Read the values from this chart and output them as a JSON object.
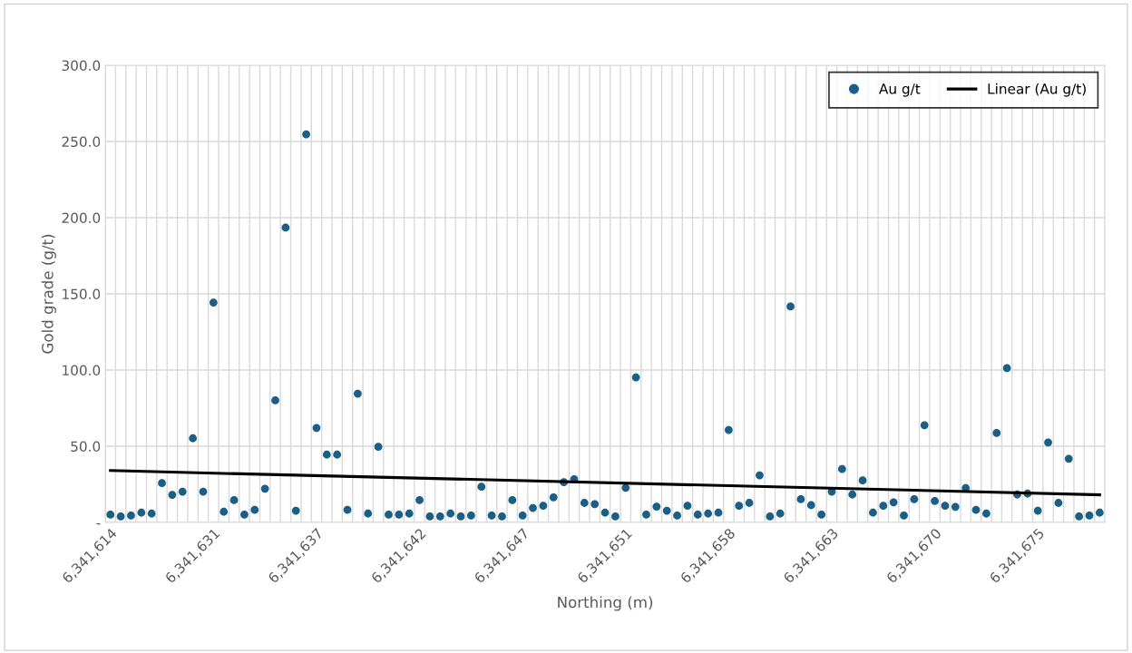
{
  "chart_data": {
    "type": "scatter",
    "xlabel": "Northing (m)",
    "ylabel": "Gold grade (g/t)",
    "categories": [
      "6,341,614",
      null,
      null,
      null,
      null,
      null,
      null,
      null,
      null,
      null,
      "6,341,631",
      null,
      null,
      null,
      null,
      null,
      null,
      null,
      null,
      null,
      "6,341,637",
      null,
      null,
      null,
      null,
      null,
      null,
      null,
      null,
      null,
      "6,341,642",
      null,
      null,
      null,
      null,
      null,
      null,
      null,
      null,
      null,
      "6,341,647",
      null,
      null,
      null,
      null,
      null,
      null,
      null,
      null,
      null,
      "6,341,651",
      null,
      null,
      null,
      null,
      null,
      null,
      null,
      null,
      null,
      "6,341,658",
      null,
      null,
      null,
      null,
      null,
      null,
      null,
      null,
      null,
      "6,341,663",
      null,
      null,
      null,
      null,
      null,
      null,
      null,
      null,
      null,
      "6,341,670",
      null,
      null,
      null,
      null,
      null,
      null,
      null,
      null,
      null,
      "6,341,675",
      null,
      null,
      null,
      null,
      null,
      null
    ],
    "series": [
      {
        "name": "Au g/t",
        "color": "#1b5e86",
        "values": [
          5.1,
          3.9,
          4.5,
          6.4,
          5.8,
          25.8,
          18.1,
          20.2,
          55.2,
          20.2,
          144.3,
          7.0,
          14.6,
          5.1,
          8.2,
          22.1,
          80.1,
          193.5,
          7.7,
          254.7,
          62.0,
          44.5,
          44.5,
          8.2,
          84.5,
          5.8,
          49.6,
          5.1,
          5.1,
          5.8,
          14.6,
          3.9,
          3.9,
          5.8,
          3.9,
          4.5,
          23.4,
          4.5,
          3.9,
          14.6,
          4.5,
          9.5,
          10.9,
          16.5,
          26.4,
          28.4,
          12.8,
          12.0,
          6.4,
          3.9,
          22.7,
          95.2,
          5.1,
          10.3,
          7.7,
          4.5,
          10.9,
          5.1,
          5.8,
          6.4,
          60.7,
          10.9,
          12.8,
          30.9,
          3.9,
          5.8,
          141.7,
          15.2,
          11.3,
          5.1,
          20.2,
          35.0,
          18.3,
          27.6,
          6.4,
          10.9,
          13.2,
          4.5,
          15.2,
          63.8,
          14.0,
          10.9,
          10.2,
          22.6,
          8.2,
          5.8,
          58.7,
          101.3,
          18.3,
          18.9,
          7.7,
          52.5,
          12.8,
          41.8,
          3.9,
          4.5,
          6.4
        ]
      },
      {
        "name": "Linear (Au g/t)",
        "type": "line",
        "marker": "none",
        "color": "#000000",
        "values": [
          34.0,
          null,
          null,
          null,
          null,
          null,
          null,
          null,
          null,
          null,
          null,
          null,
          null,
          null,
          null,
          null,
          null,
          null,
          null,
          null,
          null,
          null,
          null,
          null,
          null,
          null,
          null,
          null,
          null,
          null,
          null,
          null,
          null,
          null,
          null,
          null,
          null,
          null,
          null,
          null,
          null,
          null,
          null,
          null,
          null,
          null,
          null,
          null,
          null,
          null,
          null,
          null,
          null,
          null,
          null,
          null,
          null,
          null,
          null,
          null,
          null,
          null,
          null,
          null,
          null,
          null,
          null,
          null,
          null,
          null,
          null,
          null,
          null,
          null,
          null,
          null,
          null,
          null,
          null,
          null,
          null,
          null,
          null,
          null,
          null,
          null,
          null,
          null,
          null,
          null,
          null,
          null,
          null,
          null,
          null,
          null,
          18.1
        ]
      }
    ],
    "ylim": [
      0,
      300
    ],
    "yticks": [
      {
        "value": 0,
        "label": "-"
      },
      {
        "value": 50,
        "label": "50.0"
      },
      {
        "value": 100,
        "label": "100.0"
      },
      {
        "value": 150,
        "label": "150.0"
      },
      {
        "value": 200,
        "label": "200.0"
      },
      {
        "value": 250,
        "label": "250.0"
      },
      {
        "value": 300,
        "label": "300.0"
      }
    ],
    "grid": true,
    "legend": "top right",
    "marker": "circle",
    "line_style": "solid"
  }
}
